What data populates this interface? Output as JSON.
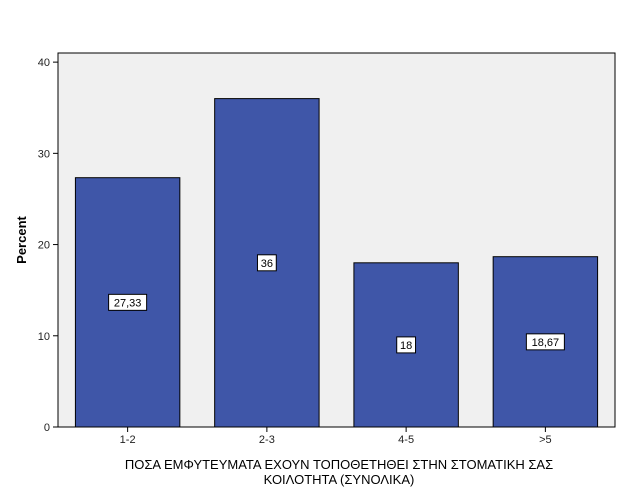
{
  "chart_data": {
    "type": "bar",
    "title": "",
    "xlabel_lines": [
      "ΠΟΣΑ ΕΜΦΥΤΕΥΜΑΤΑ ΕΧΟΥΝ ΤΟΠΟΘΕΤΗΘΕΙ ΣΤΗΝ ΣΤΟΜΑΤΙΚΗ ΣΑΣ",
      "ΚΟΙΛΟΤΗΤΑ (ΣΥΝΟΛΙΚΑ)"
    ],
    "ylabel": "Percent",
    "categories": [
      "1-2",
      "2-3",
      "4-5",
      ">5"
    ],
    "values": [
      27.33,
      36,
      18,
      18.67
    ],
    "data_labels": [
      "27,33",
      "36",
      "18",
      "18,67"
    ],
    "ylim": [
      0,
      41
    ],
    "yticks": [
      0,
      10,
      20,
      30,
      40
    ],
    "grid": false,
    "legend": "none",
    "colors": {
      "bar_fill": "#3f56a8",
      "bar_stroke": "#000000",
      "plot_background": "#f0f0f0",
      "page_background": "#ffffff"
    }
  }
}
